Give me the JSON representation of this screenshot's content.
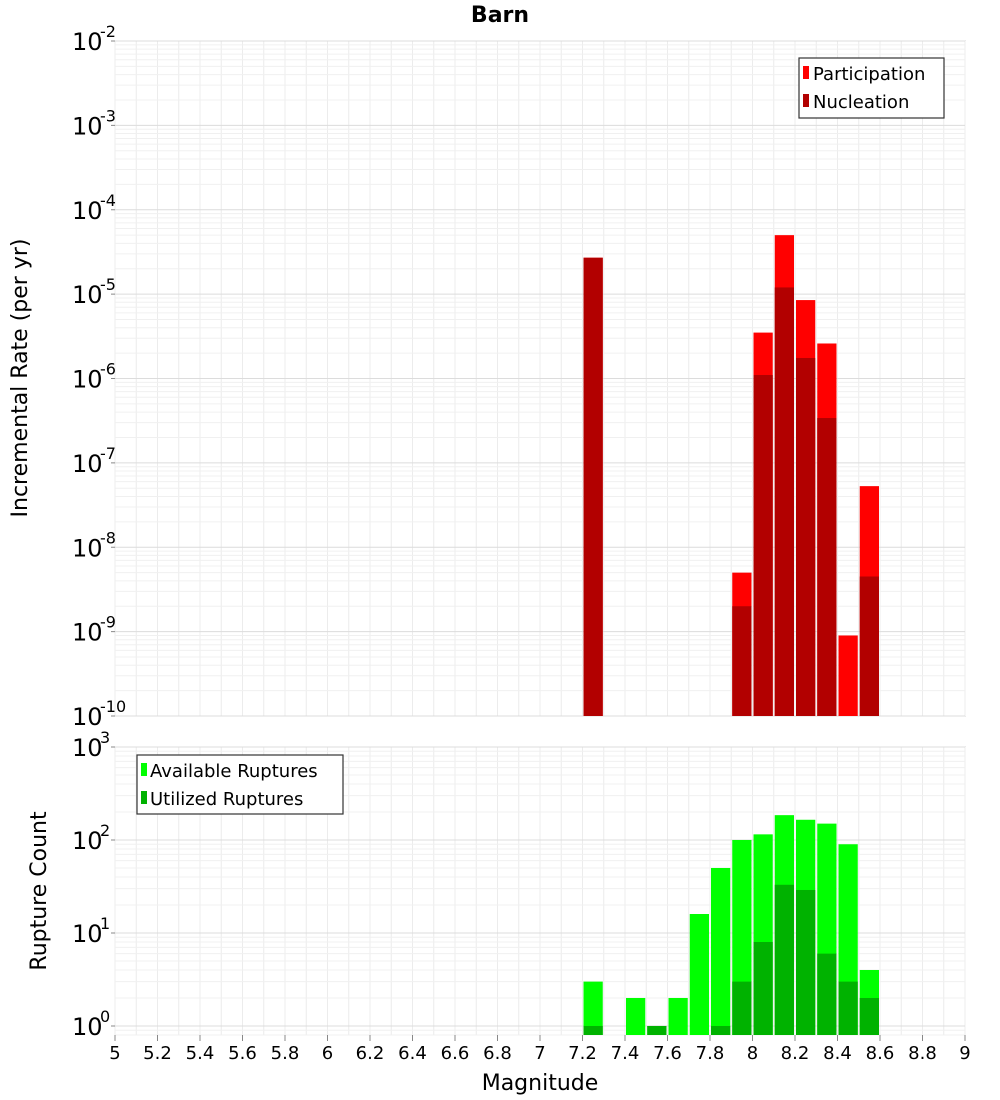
{
  "chart_data": [
    {
      "type": "bar",
      "title": "Barn",
      "xlabel": "",
      "ylabel": "Incremental Rate (per yr)",
      "yscale": "log",
      "xlim": [
        5,
        9
      ],
      "ylim": [
        1e-10,
        0.01
      ],
      "ytick_labels": [
        {
          "base": "10",
          "exp": "-10",
          "value": 1e-10
        },
        {
          "base": "10",
          "exp": "-9",
          "value": 1e-09
        },
        {
          "base": "10",
          "exp": "-8",
          "value": 1e-08
        },
        {
          "base": "10",
          "exp": "-7",
          "value": 1e-07
        },
        {
          "base": "10",
          "exp": "-6",
          "value": 1e-06
        },
        {
          "base": "10",
          "exp": "-5",
          "value": 1e-05
        },
        {
          "base": "10",
          "exp": "-4",
          "value": 0.0001
        },
        {
          "base": "10",
          "exp": "-3",
          "value": 0.001
        },
        {
          "base": "10",
          "exp": "-2",
          "value": 0.01
        }
      ],
      "legend_position": "top-right",
      "bin_width": 0.1,
      "series": [
        {
          "name": "Participation",
          "color": "#ff0000",
          "x": [
            7.25,
            7.95,
            8.05,
            8.15,
            8.25,
            8.35,
            8.45,
            8.55
          ],
          "values": [
            2.7e-05,
            5e-09,
            3.5e-06,
            5e-05,
            8.5e-06,
            2.6e-06,
            9e-10,
            5.3e-08
          ]
        },
        {
          "name": "Nucleation",
          "color": "#b20000",
          "x": [
            7.25,
            7.95,
            8.05,
            8.15,
            8.25,
            8.35,
            8.55
          ],
          "values": [
            2.7e-05,
            2e-09,
            1.1e-06,
            1.2e-05,
            1.75e-06,
            3.4e-07,
            4.5e-09
          ]
        }
      ]
    },
    {
      "type": "bar",
      "title": "",
      "xlabel": "Magnitude",
      "ylabel": "Rupture Count",
      "yscale": "log",
      "xlim": [
        5,
        9
      ],
      "ylim": [
        0.8,
        1000
      ],
      "ytick_labels": [
        {
          "base": "10",
          "exp": "0",
          "value": 1
        },
        {
          "base": "10",
          "exp": "1",
          "value": 10
        },
        {
          "base": "10",
          "exp": "2",
          "value": 100
        },
        {
          "base": "10",
          "exp": "3",
          "value": 1000
        }
      ],
      "xtick_labels": [
        "5",
        "5.2",
        "5.4",
        "5.6",
        "5.8",
        "6",
        "6.2",
        "6.4",
        "6.6",
        "6.8",
        "7",
        "7.2",
        "7.4",
        "7.6",
        "7.8",
        "8",
        "8.2",
        "8.4",
        "8.6",
        "8.8",
        "9"
      ],
      "legend_position": "top-left",
      "bin_width": 0.1,
      "series": [
        {
          "name": "Available Ruptures",
          "color": "#00ff00",
          "x": [
            7.25,
            7.45,
            7.55,
            7.65,
            7.75,
            7.85,
            7.95,
            8.05,
            8.15,
            8.25,
            8.35,
            8.45,
            8.55
          ],
          "values": [
            3,
            2,
            1,
            2,
            16,
            50,
            100,
            115,
            185,
            165,
            150,
            90,
            4
          ]
        },
        {
          "name": "Utilized Ruptures",
          "color": "#00b200",
          "x": [
            7.25,
            7.55,
            7.85,
            7.95,
            8.05,
            8.15,
            8.25,
            8.35,
            8.45,
            8.55
          ],
          "values": [
            1,
            1,
            1,
            3,
            8,
            33,
            29,
            6,
            3,
            2
          ]
        }
      ]
    }
  ]
}
